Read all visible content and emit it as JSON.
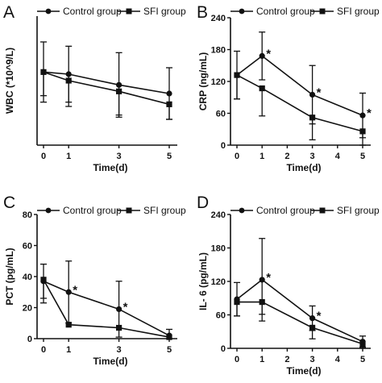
{
  "chart_data": [
    {
      "panel": "A",
      "type": "line",
      "xlabel": "Time(d)",
      "ylabel": "WBC (*10^9/L)",
      "xlim": [
        0,
        5
      ],
      "ylim": [
        0,
        30
      ],
      "xticks": [
        0,
        1,
        3,
        5
      ],
      "yticks": [],
      "legend_position": "top",
      "series": [
        {
          "name": "Control group",
          "marker": "circle",
          "x": [
            0,
            1,
            3,
            5
          ],
          "y": [
            17,
            16.5,
            14,
            12
          ],
          "err": [
            7,
            6.5,
            7.5,
            6
          ],
          "stars": []
        },
        {
          "name": "SFI group",
          "marker": "square",
          "x": [
            0,
            1,
            3,
            5
          ],
          "y": [
            17,
            15,
            12.5,
            9.5
          ],
          "err": [
            5.5,
            6,
            5.5,
            3.5
          ],
          "stars": []
        }
      ]
    },
    {
      "panel": "B",
      "type": "line",
      "xlabel": "Time(d)",
      "ylabel": "CRP (ng/mL)",
      "xlim": [
        0,
        5
      ],
      "ylim": [
        0,
        240
      ],
      "xticks": [
        0,
        1,
        2,
        3,
        4,
        5
      ],
      "yticks": [
        0,
        60,
        120,
        180,
        240
      ],
      "legend_position": "top",
      "series": [
        {
          "name": "Control group",
          "marker": "circle",
          "x": [
            0,
            1,
            3,
            5
          ],
          "y": [
            132,
            168,
            95,
            56
          ],
          "err": [
            45,
            45,
            55,
            42
          ],
          "stars": [
            "",
            "*",
            "*",
            "*"
          ]
        },
        {
          "name": "SFI group",
          "marker": "square",
          "x": [
            0,
            1,
            3,
            5
          ],
          "y": [
            132,
            107,
            52,
            26
          ],
          "err": [
            45,
            52,
            42,
            26
          ],
          "stars": []
        }
      ]
    },
    {
      "panel": "C",
      "type": "line",
      "xlabel": "Time(d)",
      "ylabel": "PCT (pg/mL)",
      "xlim": [
        0,
        5
      ],
      "ylim": [
        0,
        80
      ],
      "xticks": [
        0,
        1,
        3,
        5
      ],
      "yticks": [
        0,
        20,
        40,
        60,
        80
      ],
      "legend_position": "top",
      "series": [
        {
          "name": "Control group",
          "marker": "circle",
          "x": [
            0,
            1,
            3,
            5
          ],
          "y": [
            37,
            30,
            19,
            2
          ],
          "err": [
            11,
            20,
            18,
            4
          ],
          "stars": [
            "",
            "*",
            "*",
            ""
          ]
        },
        {
          "name": "SFI group",
          "marker": "square",
          "x": [
            0,
            1,
            3,
            5
          ],
          "y": [
            38,
            9,
            7,
            1
          ],
          "err": [
            15,
            0,
            0,
            0
          ],
          "stars": []
        }
      ]
    },
    {
      "panel": "D",
      "type": "line",
      "xlabel": "Time(d)",
      "ylabel": "IL- 6 (pg/mL)",
      "xlim": [
        0,
        5
      ],
      "ylim": [
        0,
        240
      ],
      "xticks": [
        0,
        1,
        2,
        3,
        4,
        5
      ],
      "yticks": [
        0,
        60,
        120,
        180,
        240
      ],
      "legend_position": "top",
      "series": [
        {
          "name": "Control group",
          "marker": "circle",
          "x": [
            0,
            1,
            3,
            5
          ],
          "y": [
            88,
            123,
            54,
            12
          ],
          "err": [
            30,
            74,
            22,
            10
          ],
          "stars": [
            "",
            "*",
            "*",
            ""
          ]
        },
        {
          "name": "SFI group",
          "marker": "square",
          "x": [
            0,
            1,
            3,
            5
          ],
          "y": [
            83,
            83,
            37,
            8
          ],
          "err": [
            25,
            22,
            20,
            8
          ],
          "stars": []
        }
      ]
    }
  ]
}
